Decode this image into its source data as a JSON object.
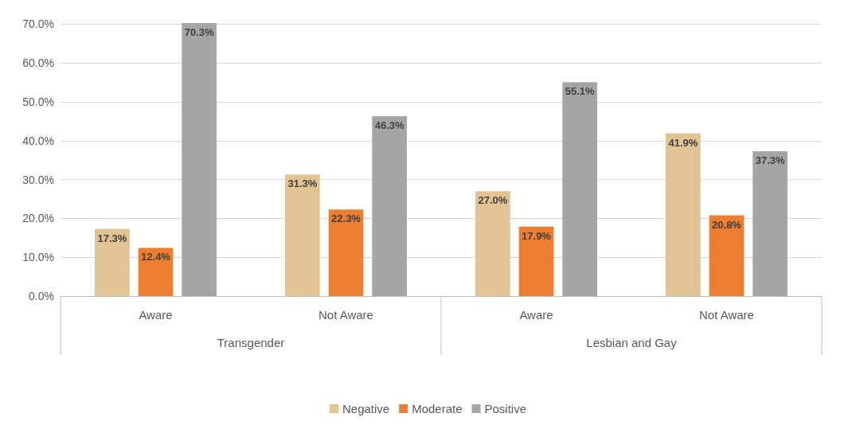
{
  "chart_data": {
    "type": "bar",
    "categories": [
      "Aware",
      "Not Aware",
      "Aware",
      "Not Aware"
    ],
    "annotations": [
      "Transgender",
      "Lesbian and Gay"
    ],
    "series": [
      {
        "name": "Negative",
        "color": "#e2c393",
        "values": [
          17.3,
          31.3,
          27.0,
          41.9
        ],
        "value_labels": [
          "17.3%",
          "31.3%",
          "27.0%",
          "41.9%"
        ]
      },
      {
        "name": "Moderate",
        "color": "#ed7d31",
        "values": [
          12.4,
          22.3,
          17.9,
          20.8
        ],
        "value_labels": [
          "12.4%",
          "22.3%",
          "17.9%",
          "20.8%"
        ]
      },
      {
        "name": "Positive",
        "color": "#a5a5a5",
        "values": [
          70.3,
          46.3,
          55.1,
          37.3
        ],
        "value_labels": [
          "70.3%",
          "46.3%",
          "55.1%",
          "37.3%"
        ]
      }
    ],
    "ylim": [
      0,
      70.5
    ],
    "yticks": [
      {
        "value": 0,
        "label": "0.0%"
      },
      {
        "value": 10,
        "label": "10.0%"
      },
      {
        "value": 20,
        "label": "20.0%"
      },
      {
        "value": 30,
        "label": "30.0%"
      },
      {
        "value": 40,
        "label": "40.0%"
      },
      {
        "value": 50,
        "label": "50.0%"
      },
      {
        "value": 60,
        "label": "60.0%"
      },
      {
        "value": 70,
        "label": "70.0%"
      }
    ],
    "grid": "y",
    "legend": "bottom"
  }
}
